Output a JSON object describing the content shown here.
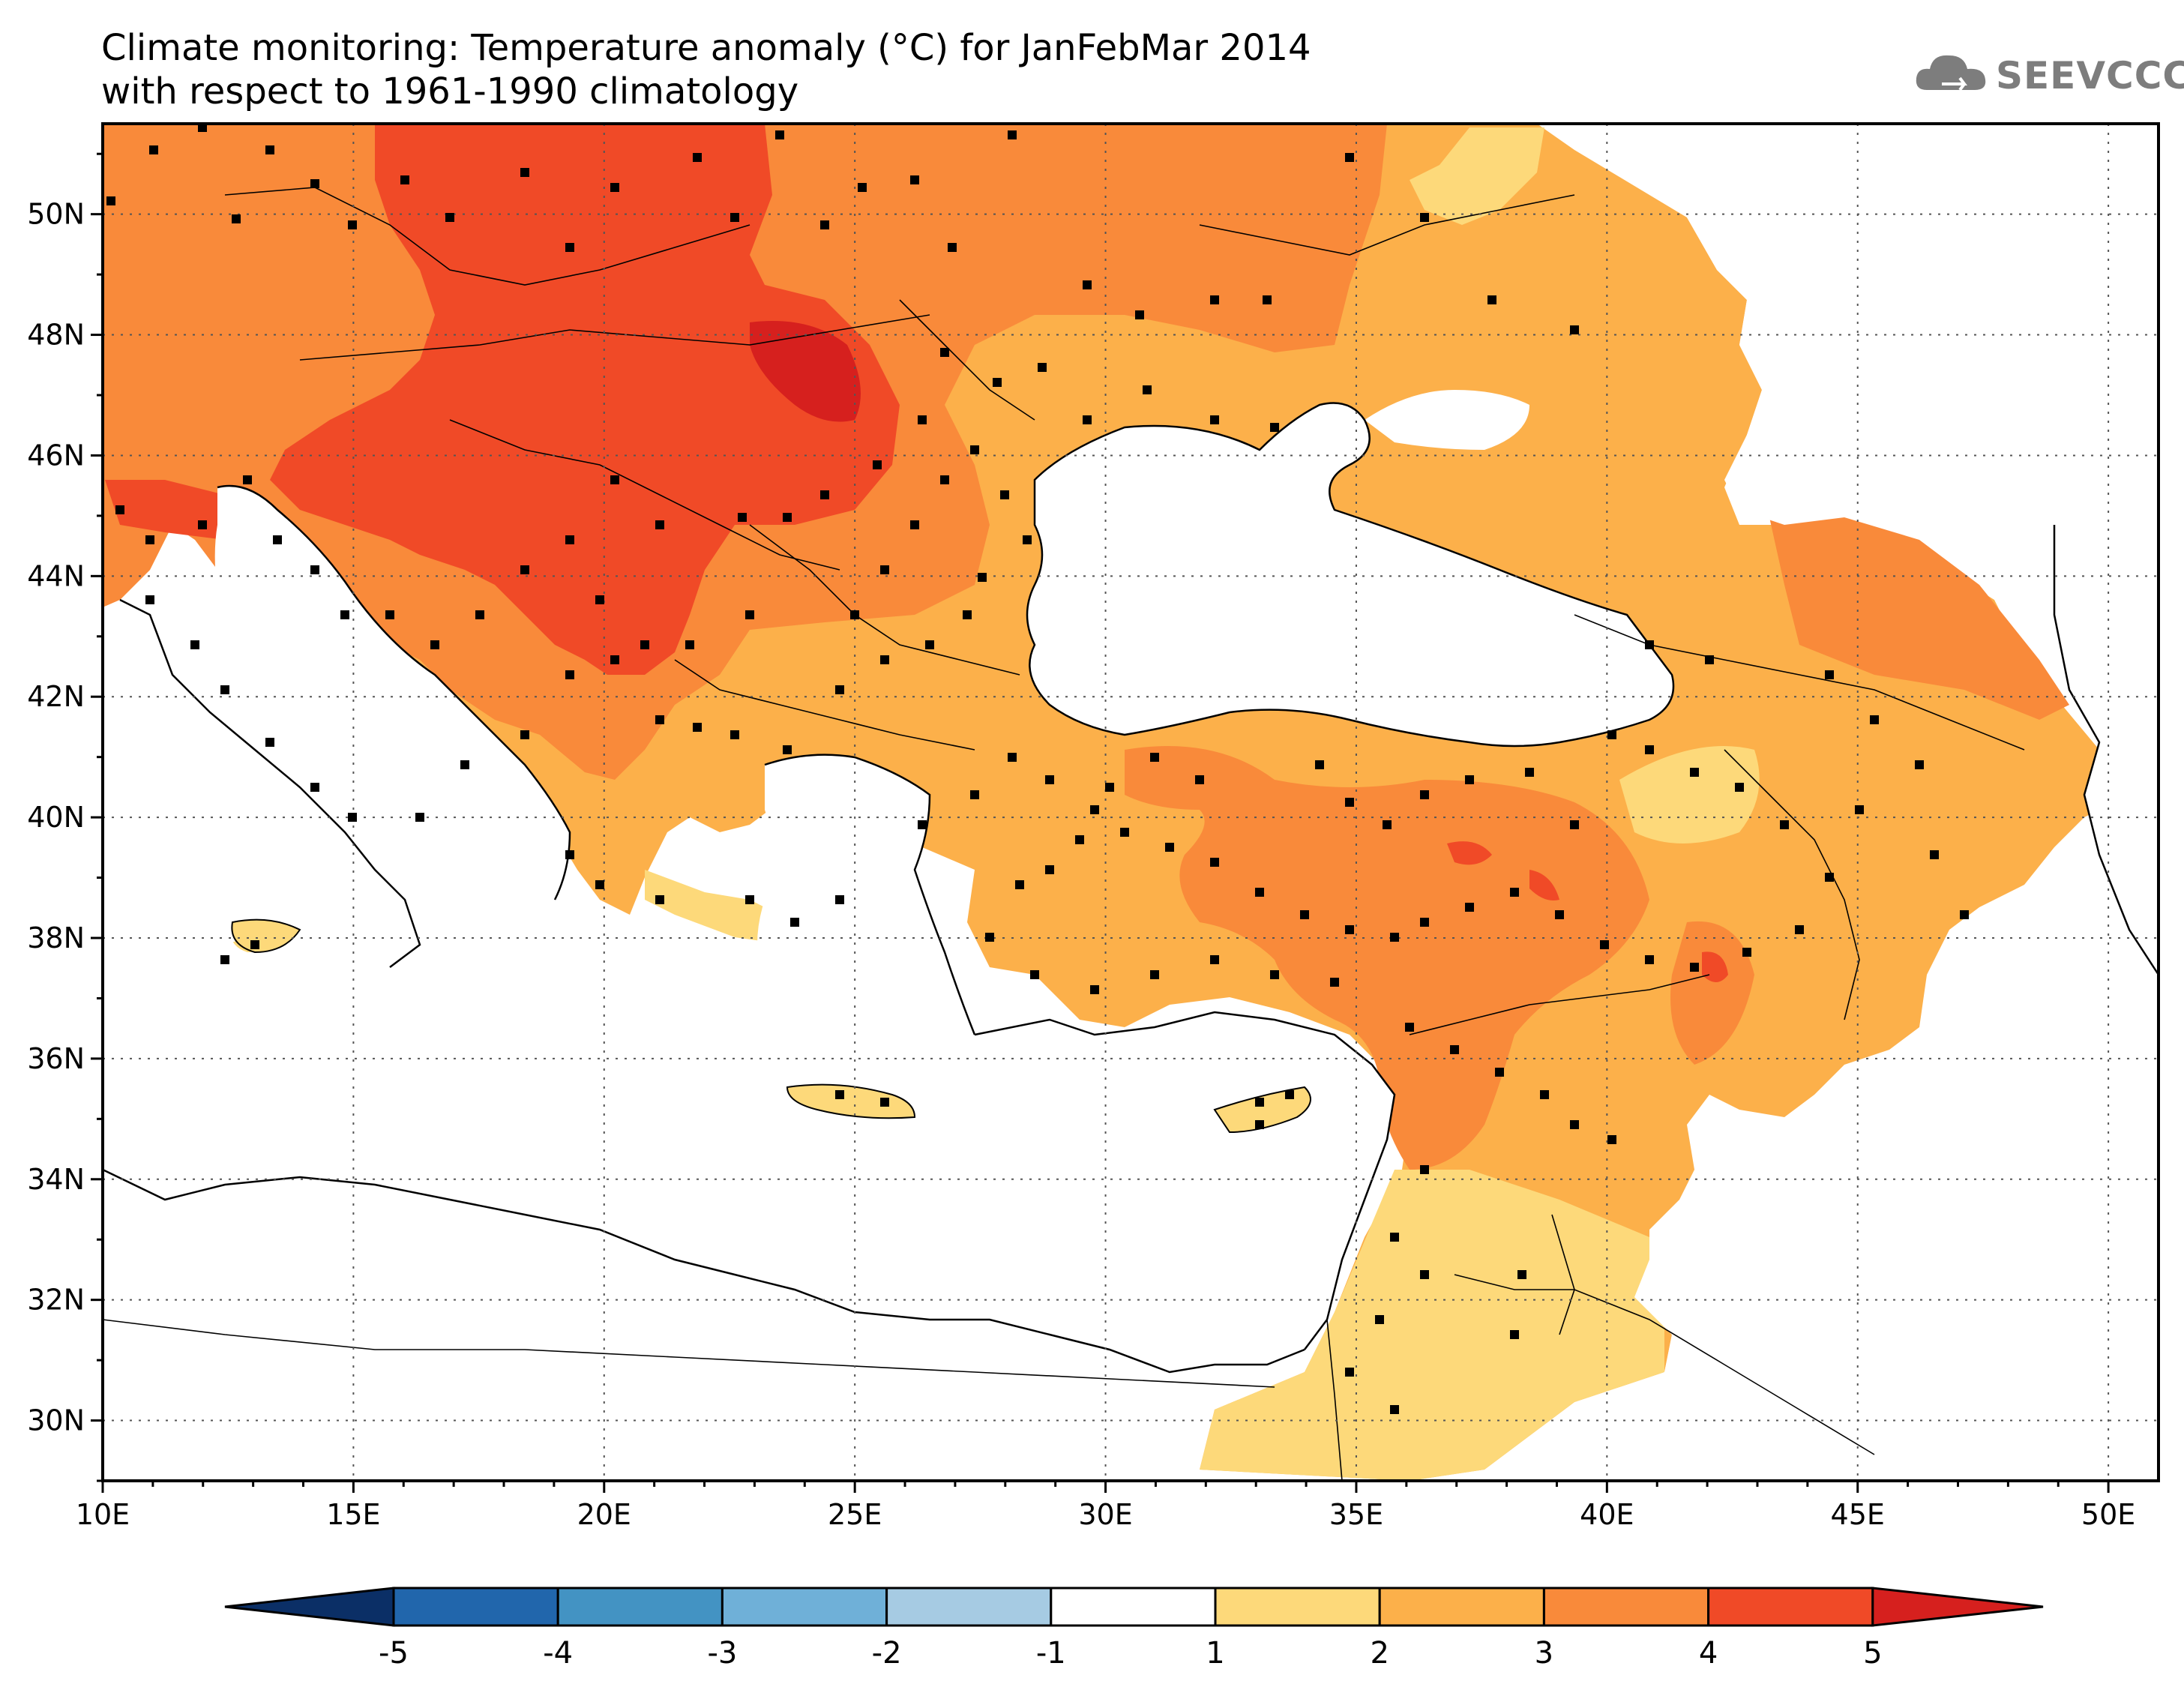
{
  "title_line1": "Climate monitoring: Temperature anomaly (°C) for JanFebMar 2014",
  "title_line2": "with respect to 1961-1990 climatology",
  "logo": {
    "text": "SEEVCCC",
    "icon": "cloud-icon"
  },
  "map": {
    "lon_range": [
      10,
      51
    ],
    "lat_range": [
      29,
      51.5
    ],
    "lon_ticks": [
      "10E",
      "15E",
      "20E",
      "25E",
      "30E",
      "35E",
      "40E",
      "45E",
      "50E"
    ],
    "lat_ticks": [
      "30N",
      "32N",
      "34N",
      "36N",
      "38N",
      "40N",
      "42N",
      "44N",
      "46N",
      "48N",
      "50N"
    ]
  },
  "colorbar": {
    "levels": [
      "-5",
      "-4",
      "-3",
      "-2",
      "-1",
      "1",
      "2",
      "3",
      "4",
      "5"
    ],
    "colors": [
      "#0b2f66",
      "#2166ac",
      "#4393c3",
      "#6fb0d8",
      "#a6cbe3",
      "#ffffff",
      "#fdd97a",
      "#fcb04a",
      "#f98a3a",
      "#f04a27",
      "#d6201e"
    ]
  },
  "palette": {
    "ocean": "#ffffff",
    "anomaly_1_2": "#fdd97a",
    "anomaly_2_3": "#fcb04a",
    "anomaly_3_4": "#f98a3a",
    "anomaly_4_5": "#f04a27",
    "anomaly_gt5": "#d6201e"
  },
  "stations_marker": "black-square"
}
